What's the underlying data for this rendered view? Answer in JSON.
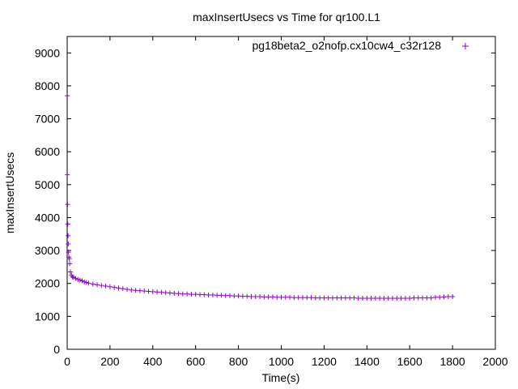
{
  "chart_data": {
    "type": "scatter",
    "title": "maxInsertUsecs vs Time for qr100.L1",
    "xlabel": "Time(s)",
    "ylabel": "maxInsertUsecs",
    "xlim": [
      0,
      2000
    ],
    "ylim": [
      0,
      9500
    ],
    "x_ticks": [
      "0",
      "200",
      "400",
      "600",
      "800",
      "1000",
      "1200",
      "1400",
      "1600",
      "1800",
      "2000"
    ],
    "y_ticks": [
      "0",
      "1000",
      "2000",
      "3000",
      "4000",
      "5000",
      "6000",
      "7000",
      "8000",
      "9000"
    ],
    "grid": false,
    "legend_position": "top-right",
    "marker": "+",
    "series": [
      {
        "name": "pg18beta2_o2nofp.cx10cw4_c32r128",
        "color": "#9400d3",
        "x": [
          1,
          1,
          2,
          3,
          4,
          5,
          6,
          8,
          10,
          12,
          15,
          20,
          25,
          30,
          40,
          50,
          60,
          70,
          80,
          90,
          100,
          120,
          140,
          160,
          180,
          200,
          220,
          240,
          260,
          280,
          300,
          320,
          340,
          360,
          380,
          400,
          420,
          440,
          460,
          480,
          500,
          520,
          540,
          560,
          580,
          600,
          620,
          640,
          660,
          680,
          700,
          720,
          740,
          760,
          780,
          800,
          820,
          840,
          860,
          880,
          900,
          920,
          940,
          960,
          980,
          1000,
          1020,
          1040,
          1060,
          1080,
          1100,
          1120,
          1140,
          1160,
          1180,
          1200,
          1220,
          1240,
          1260,
          1280,
          1300,
          1320,
          1340,
          1360,
          1380,
          1400,
          1420,
          1440,
          1460,
          1480,
          1500,
          1520,
          1540,
          1560,
          1580,
          1600,
          1620,
          1640,
          1660,
          1680,
          1700,
          1720,
          1740,
          1760,
          1780,
          1800
        ],
        "y": [
          7700,
          5300,
          4400,
          3800,
          3450,
          3200,
          2950,
          2800,
          2750,
          2600,
          2350,
          2250,
          2200,
          2180,
          2150,
          2120,
          2100,
          2080,
          2050,
          2030,
          2010,
          1980,
          1960,
          1940,
          1920,
          1900,
          1880,
          1860,
          1840,
          1820,
          1800,
          1790,
          1780,
          1770,
          1760,
          1750,
          1740,
          1730,
          1720,
          1710,
          1700,
          1690,
          1680,
          1680,
          1670,
          1670,
          1660,
          1660,
          1650,
          1650,
          1640,
          1640,
          1630,
          1630,
          1620,
          1620,
          1610,
          1610,
          1600,
          1600,
          1600,
          1590,
          1590,
          1590,
          1580,
          1580,
          1580,
          1580,
          1570,
          1570,
          1570,
          1570,
          1570,
          1560,
          1560,
          1560,
          1560,
          1560,
          1560,
          1560,
          1560,
          1560,
          1560,
          1550,
          1550,
          1550,
          1550,
          1550,
          1550,
          1550,
          1550,
          1550,
          1550,
          1550,
          1550,
          1550,
          1560,
          1560,
          1560,
          1560,
          1560,
          1580,
          1580,
          1590,
          1600,
          1600
        ]
      }
    ]
  }
}
